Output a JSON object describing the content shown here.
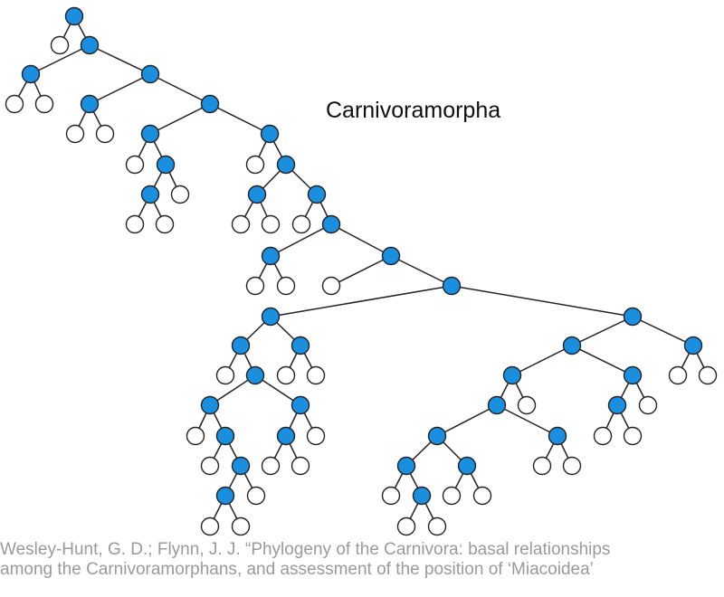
{
  "diagram": {
    "type": "phylogenetic-tree",
    "clade_label": "Carnivoramorpha",
    "colors": {
      "internal_node": "#1a8fe0",
      "leaf_node": "#ffffff",
      "stroke": "#222222"
    }
  },
  "citation": {
    "line1": "Wesley-Hunt, G. D.; Flynn, J. J. “Phylogeny of the Carnivora: basal relationships",
    "line2": "among the Carnivoramorphans, and assessment of the position of ‘Miacoidea’"
  }
}
